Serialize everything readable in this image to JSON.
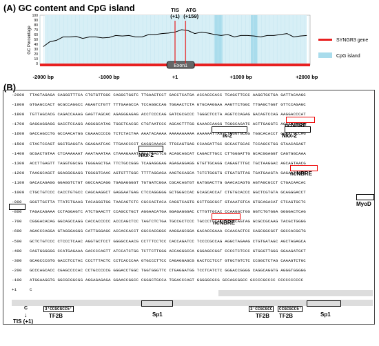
{
  "panelA": {
    "title": "(A) GC content and CpG island",
    "ylabel": "GC Percentage",
    "yticks": [
      "100",
      "90",
      "80",
      "70",
      "60",
      "50",
      "40",
      "30",
      "20",
      "10",
      "0"
    ],
    "xticks": [
      "-2000 bp",
      "-1000 bp",
      "+1",
      "+1000 bp",
      "+2000 bp"
    ],
    "exon_label": "Exon1",
    "tis_label": "TIS",
    "tis_sub": "(+1)",
    "atg_label": "ATG",
    "atg_sub": "(+159)",
    "legend": [
      {
        "label": "SYNGR3 gene",
        "color": "#e82020"
      },
      {
        "label": "CpG island",
        "color": "#a9dcec"
      }
    ]
  },
  "chart_data": {
    "type": "line",
    "x": [
      -2000,
      -1900,
      -1800,
      -1700,
      -1600,
      -1500,
      -1400,
      -1300,
      -1200,
      -1100,
      -1000,
      -900,
      -800,
      -700,
      -600,
      -500,
      -400,
      -300,
      -200,
      -100,
      0,
      100,
      200,
      300,
      400,
      500,
      600,
      700,
      800,
      900,
      1000,
      1100,
      1200,
      1300,
      1400,
      1500,
      1600,
      1700,
      1800,
      1900,
      2000
    ],
    "y": [
      35,
      45,
      48,
      55,
      55,
      56,
      52,
      55,
      55,
      53,
      54,
      58,
      57,
      58,
      55,
      55,
      60,
      60,
      62,
      63,
      65,
      70,
      68,
      62,
      65,
      63,
      60,
      58,
      60,
      55,
      58,
      58,
      57,
      55,
      58,
      58,
      60,
      62,
      55,
      57,
      58
    ],
    "xlim": [
      -2050,
      2050
    ],
    "ylim": [
      0,
      100
    ],
    "cpg_islands": [
      [
        -1980,
        2000
      ],
      [
        600,
        720
      ],
      [
        1150,
        1250
      ]
    ],
    "gene_span": [
      -2050,
      2050
    ],
    "exon_span": [
      -60,
      230
    ]
  },
  "panelB": {
    "title": "(B)",
    "rows": [
      {
        "pos": "-2000",
        "seq": "TTAGTAGAGA CAGGGTTTCA CTGTGTTGGC CAGGCTGGTC TTGAACTCCT GACCTCATGA ACCACCCACC TCAGCTTCCC AAGGTGCTGA GATTACAAGC"
      },
      {
        "pos": "-1900",
        "seq": "GTGAGCCACT GCGCCAGGCC AGAGTCTGTT TTTGAAGCCA TCCAGGCCAG TGGAACTCTA GTGCAAGGAA AAGTTCTGGC TTGAGCTGGT GTTCCAGAGC"
      },
      {
        "pos": "-1800",
        "seq": "TGTTAGCACG CAGACCAAAG GAGTTAGCAC AGAGGGAGAG ACCTCCCCAG GATCGCGCCC TGGGCTCCTA AGGTCCAGAG GACAGTCCAG AAGGACCCAT"
      },
      {
        "pos": "-1700",
        "seq": "GAGGAGGAGG GACCTCCAGG AGGGGCATAG TGGCTCACGC CTGTAATCCC AGCACTTTGG GAAACCAAGG TGGGCAGATC ACTTGAGGTC AGGAGTTCGA"
      },
      {
        "pos": "-1600",
        "seq": "GACCAGCCTG GCCAACATGG CGAAACCCCG TCTCTACTAA AAATACAAAA AAAAAAAAAA AAAAAATTAG CTGGGTGCGG TGGCACACCT GGAATCCCAG"
      },
      {
        "pos": "-1500",
        "seq": "CTACTCCAGT GGCTGAGGTA GGAGAATCAC TTGAACCCCT GAGGCAAAGC TTGCAGTGAG CCAAGATTGC GCCACTGCAC TCCAGCCTGG GTAACAGAGT"
      },
      {
        "pos": "-1400",
        "seq": "GCGACTGTAA CTCAAAAAAT AAATAAATAA CTAAAGAAAT AAATGAGTCG ACAGCAGCAT CAGACTTGCC CTTGGGATTG GCACGGAGGT CAGTGGCAAA"
      },
      {
        "pos": "-1300",
        "seq": "ACCTTGAGTT TAGGTGGCGG TGGGAGCTGA TTCTGCCGGG TCAGAGGGAG AGAGAGGAGG GTGTTGCAGG CAGAGTTTGC TGCTAAGGAC AGCAGTAACG"
      },
      {
        "pos": "-1200",
        "seq": "TAAGGCAGCT GGAGGGGAGG TGGGGTCAAC AGTGTTTGGC TTTTAGGAGA AAGTGCAGCA TCTCTGGGTG CTGATGTTAG TGATGAAGTA GAGAATGAAT"
      },
      {
        "pos": "-1100",
        "seq": "GACACAGAGG GGAGGTCTGT GGCCAACAGG TGAGAGGGGT TGTGATCGGA CGCACAGTGT GATGGACTTG GAACACAGTG AGTAGCGCCT CTGACAACAC"
      },
      {
        "pos": "-1000",
        "seq": "CTGCTGTCCC CACCTGTGCC CAGCAAGGCT GAGGAATGAG CTCCAGGGGG GCTGGGCCAC GCAGCACCAT CTGTGCACCC GGCTCGTGTA GCAGGGACCT"
      },
      {
        "pos": "-900",
        "seq": "GGGTTGCTTA TTATCTGAAG TACAGGGTGG TAACAGTCTC CGCCACTACA CAGGTCAGTG GCTTGGCGCT GTAAATGTCA GTGCAGACAT CTCAGTGCTC"
      },
      {
        "pos": "-800",
        "seq": "TAGACAGAAA CCTAGGAGTC ATCTGAACTT CCAGCCTGCT AGGAACATGA GGAGAGGGAC CTTGTTGCAC CCAAGGCTGG GGTCTGTGGA GGGGACTCAG"
      },
      {
        "pos": "-700",
        "seq": "CGGGACACAG GGCAGCCAGG CACCACCCCC ACCCAGCTCC TAGTCTCTGA TGCCGCTCCC TGCCCTCCAT TCCACAGTAG GCGCCGCAAG TACGCTGGGG"
      },
      {
        "pos": "-600",
        "seq": "AGACCCAGGA GTAGGGAGGG CATTGGGAGC ACCACCACCT GGCCACGGGC AAGGAGCGGA GACACCGAAA CCAACACTCC CAGCGGCGCT GGCCACGGTG"
      },
      {
        "pos": "-500",
        "seq": "GCTCTGTCCC CTCCCTCAAC AGGTGCTCCT GGGGCCAACG CCTTTCCTCC CACCAGATCC TCCCCGCCAG AGGCTAGAAG CTGTGATAGC AGCTAGAGCA"
      },
      {
        "pos": "-400",
        "seq": "CAGTGGGGGG CCATGAGAAA GACCCCAGTT ATCCATCTGG TCTTCTTGGG ACCAGGGCCA GGGAGCCGGT CCCCTCTCCC GTGGGTTGGG GGAAGATGCT"
      },
      {
        "pos": "-300",
        "seq": "GCAGCCCGTG GACCTCCTAC CCCTTTACTC CCTCACCCAA GTGCCCTTCC CAGAGGAGCG GACTCCTCCT GTGCTGTCTC CCGGCTCTAG CAAAGTCTGC"
      },
      {
        "pos": "-200",
        "seq": "GCCCAGCACC CGAGCCCCAC CCTGCCCCCG GGGACCTGGC TGGTGGGTTC CTGAGGATGG TCCTCATCTC GGGACCGGGG CAGGCAGGTG AGGGTGGGGG"
      },
      {
        "pos": "-100",
        "seq": "ATGGAAGGTG GGCGCGGCGG AGGAGAGAGA GGAACCGGCC CGGGCTGCCA TGGACCCAGT GGGGGCGCG GCCAGCGGCC GCCCCGCCCC CCCCCCCCCC"
      },
      {
        "pos": "+1",
        "seq": "C"
      }
    ],
    "motifs": [
      {
        "label": "ncNBRE",
        "row": 2
      },
      {
        "label": "Ik-2",
        "row": 3
      },
      {
        "label": "Nkx-2",
        "row": 3
      },
      {
        "label": "Nkx-2",
        "row": 5
      },
      {
        "label": "ncNBRE",
        "row": 6
      },
      {
        "label": "MyoD",
        "row": 9
      },
      {
        "label": "ncNBRE",
        "row": 11
      },
      {
        "label": "Sp1",
        "row": 19
      },
      {
        "label": "Sp1",
        "row": 19
      },
      {
        "label": "TF2B",
        "row": 20
      },
      {
        "label": "TF2B",
        "row": 20
      },
      {
        "label": "TF2B",
        "row": 20
      }
    ],
    "tis_label": "TIS (+1)",
    "c_label": "C",
    "tf2b_seq1": "3'CCGCGCC5'",
    "tf2b_seq2": "3'CCGCGCC",
    "tf2b_seq3": "CCGCGCC5'",
    "sp1_seq": "GCCC CGCCCC"
  }
}
